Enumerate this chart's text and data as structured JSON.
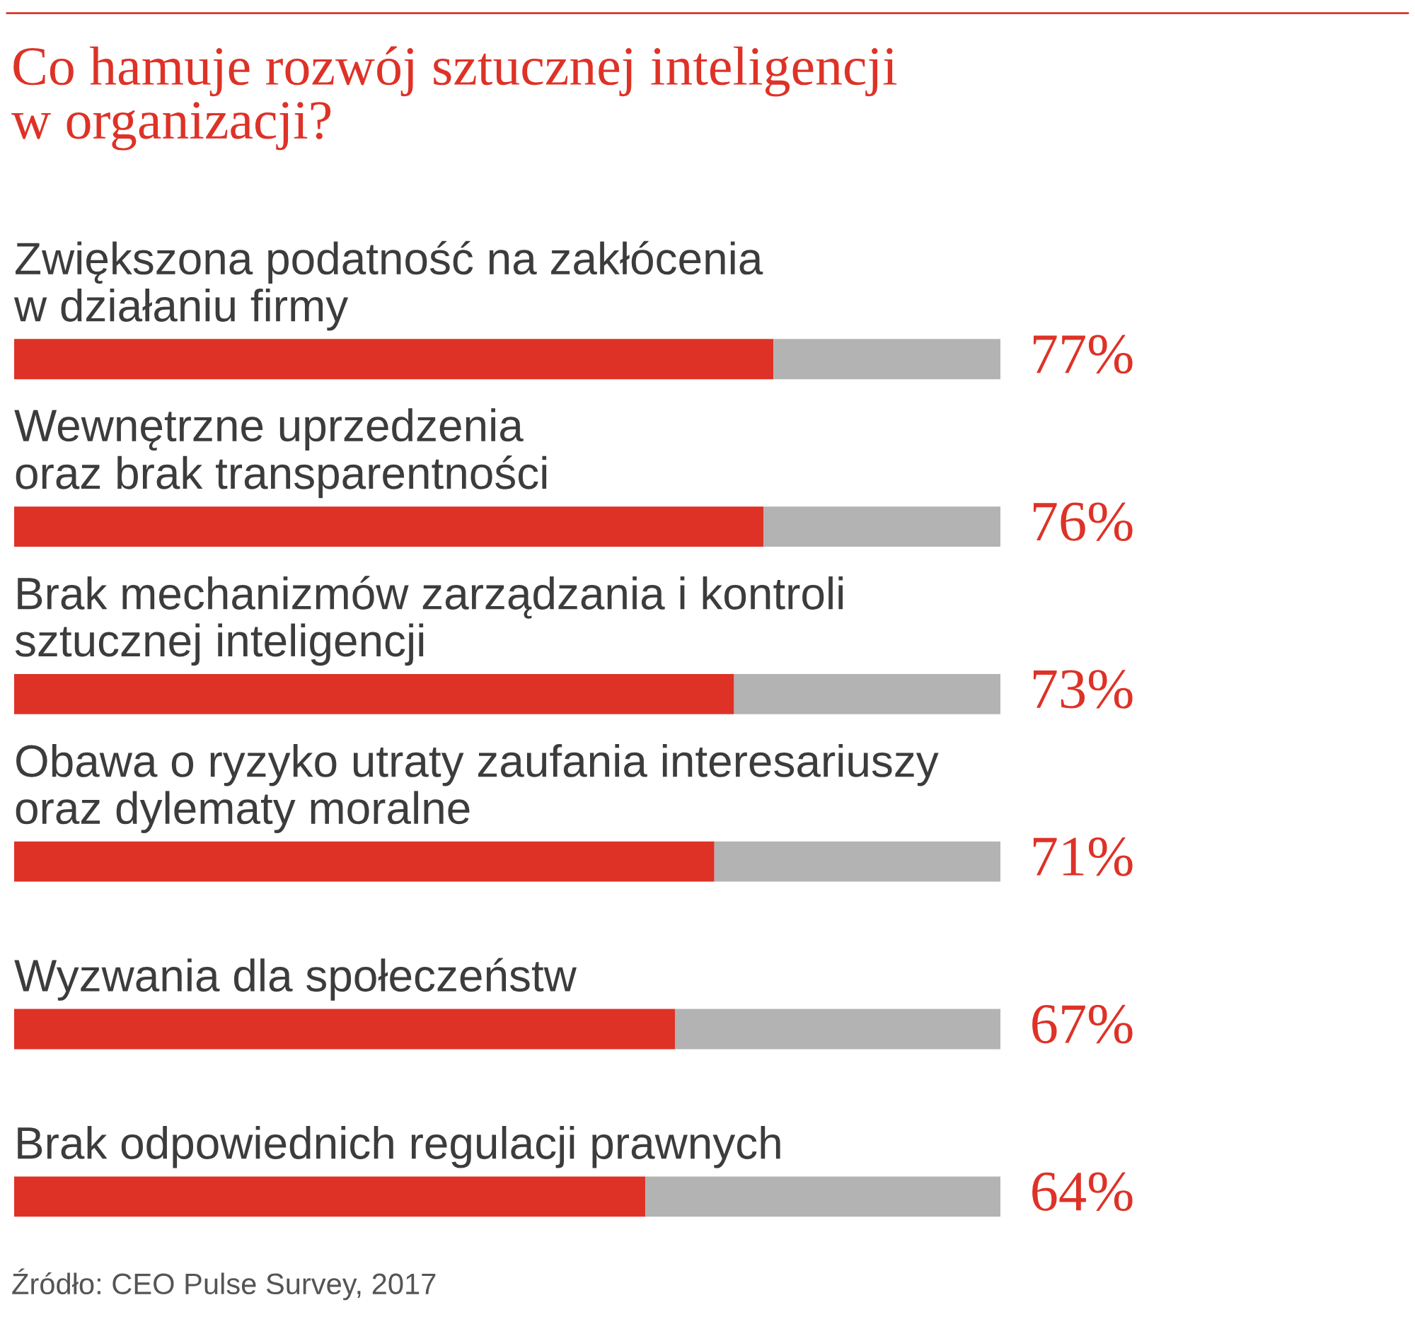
{
  "chart_data": {
    "type": "bar",
    "orientation": "horizontal",
    "stacked": true,
    "relative": false,
    "title": "Co hamuje rozwój sztucznej inteligencji\nw organizacji?",
    "categories": [
      "Zwiększona podatność na zakłócenia\nw działaniu firmy",
      "Wewnętrzne uprzedzenia\noraz brak transparentności",
      "Brak mechanizmów zarządzania i kontroli\nsztucznej inteligencji",
      "Obawa o ryzyko utraty zaufania interesariuszy\noraz dylematy moralne",
      "Wyzwania dla społeczeństw",
      "Brak odpowiednich regulacji prawnych"
    ],
    "series": [
      {
        "color": "#de3227",
        "values": [
          77,
          76,
          73,
          71,
          67,
          64
        ],
        "value_labels": [
          "77%",
          "76%",
          "73%",
          "71%",
          "67%",
          "64%"
        ]
      },
      {
        "color": "#b3b3b3",
        "values": [
          23,
          24,
          27,
          29,
          33,
          36
        ]
      }
    ],
    "xlim": [
      0,
      100
    ],
    "tick_labels": false,
    "legend": false,
    "annotations": [
      "Źródło: CEO Pulse Survey, 2017"
    ]
  }
}
